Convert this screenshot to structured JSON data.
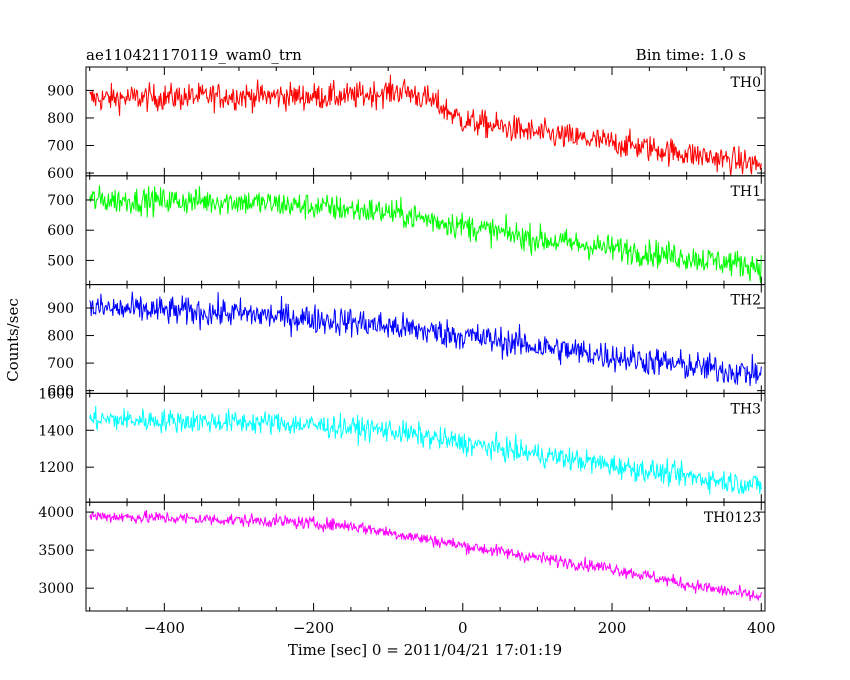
{
  "chart_data": {
    "type": "line",
    "title": "ae110421170119_wam0_trn",
    "subtitle": "Bin time: 1.0 s",
    "xlabel": "Time [sec] 0 = 2011/04/21 17:01:19",
    "ylabel": "Counts/sec",
    "xlim": [
      -505,
      405
    ],
    "x_ticks": [
      -400,
      -200,
      0,
      200,
      400
    ],
    "x_tick_labels": [
      "−400",
      "−200",
      "0",
      "200",
      "400"
    ],
    "panels": [
      {
        "name": "TH0",
        "color": "#ff0000",
        "ylim": [
          590,
          985
        ],
        "y_ticks": [
          600,
          700,
          800,
          900
        ],
        "y_tick_labels": [
          "600",
          "700",
          "800",
          "900"
        ],
        "trend": [
          [
            -500,
            870
          ],
          [
            -300,
            880
          ],
          [
            -150,
            878
          ],
          [
            -80,
            900
          ],
          [
            -40,
            860
          ],
          [
            0,
            790
          ],
          [
            100,
            745
          ],
          [
            200,
            710
          ],
          [
            300,
            670
          ],
          [
            400,
            630
          ]
        ],
        "noise": 35
      },
      {
        "name": "TH1",
        "color": "#00ff00",
        "ylim": [
          420,
          780
        ],
        "y_ticks": [
          500,
          600,
          700
        ],
        "y_tick_labels": [
          "500",
          "600",
          "700"
        ],
        "trend": [
          [
            -500,
            700
          ],
          [
            -300,
            695
          ],
          [
            -100,
            660
          ],
          [
            0,
            615
          ],
          [
            100,
            570
          ],
          [
            200,
            540
          ],
          [
            300,
            510
          ],
          [
            400,
            480
          ]
        ],
        "noise": 32
      },
      {
        "name": "TH2",
        "color": "#0000ff",
        "ylim": [
          590,
          985
        ],
        "y_ticks": [
          600,
          700,
          800,
          900
        ],
        "y_tick_labels": [
          "600",
          "700",
          "800",
          "900"
        ],
        "trend": [
          [
            -500,
            900
          ],
          [
            -300,
            880
          ],
          [
            -150,
            850
          ],
          [
            0,
            800
          ],
          [
            100,
            760
          ],
          [
            200,
            725
          ],
          [
            300,
            690
          ],
          [
            400,
            660
          ]
        ],
        "noise": 38
      },
      {
        "name": "TH3",
        "color": "#00ffff",
        "ylim": [
          1010,
          1600
        ],
        "y_ticks": [
          1200,
          1400,
          1600
        ],
        "y_tick_labels": [
          "1200",
          "1400",
          "1600"
        ],
        "trend": [
          [
            -500,
            1460
          ],
          [
            -250,
            1440
          ],
          [
            -100,
            1400
          ],
          [
            0,
            1330
          ],
          [
            100,
            1270
          ],
          [
            200,
            1210
          ],
          [
            300,
            1150
          ],
          [
            400,
            1100
          ]
        ],
        "noise": 45
      },
      {
        "name": "TH0123",
        "color": "#ff00ff",
        "ylim": [
          2700,
          4130
        ],
        "y_ticks": [
          3000,
          3500,
          4000
        ],
        "y_tick_labels": [
          "3000",
          "3500",
          "4000"
        ],
        "trend": [
          [
            -500,
            3950
          ],
          [
            -250,
            3880
          ],
          [
            -150,
            3820
          ],
          [
            0,
            3560
          ],
          [
            100,
            3400
          ],
          [
            200,
            3260
          ],
          [
            300,
            3050
          ],
          [
            400,
            2880
          ]
        ],
        "noise": 60
      }
    ]
  }
}
